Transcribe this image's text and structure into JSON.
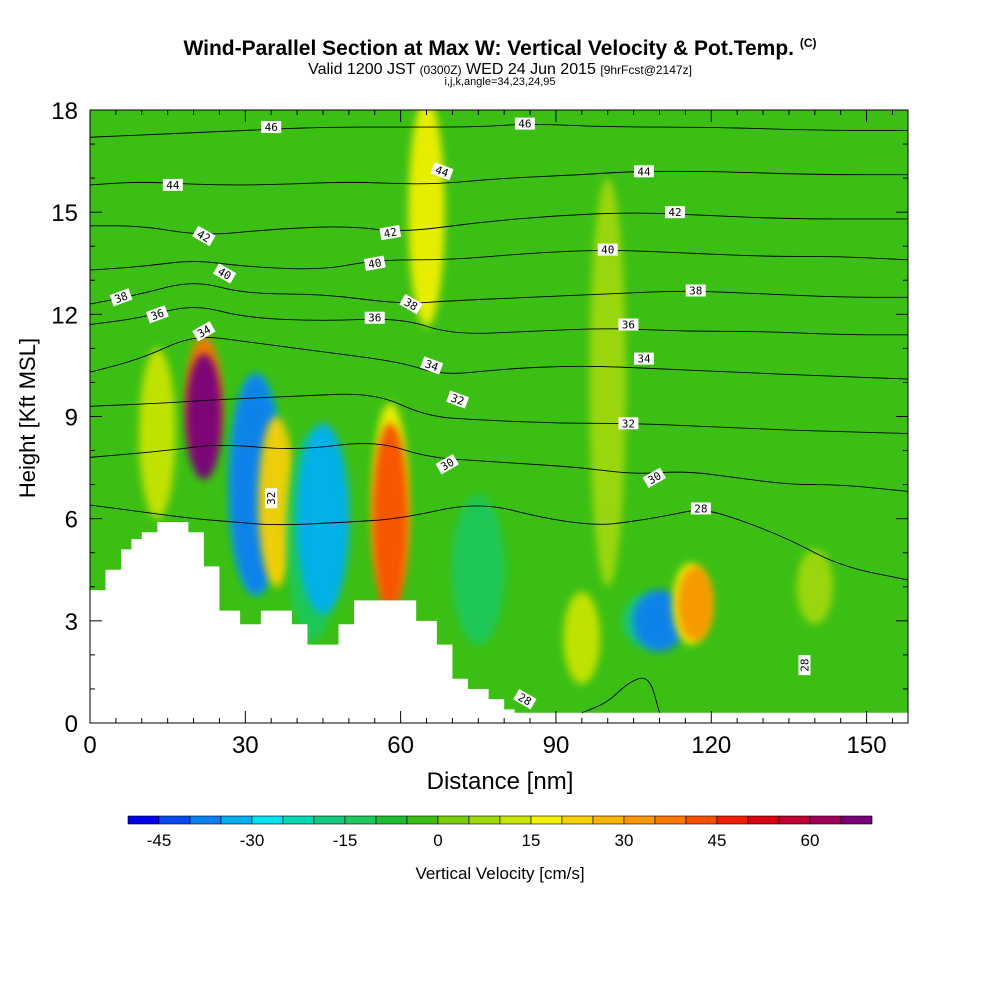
{
  "header": {
    "title": "Wind-Parallel Section at Max W: Vertical Velocity & Pot.Temp.",
    "copyright": "(C)",
    "valid_prefix": "Valid 1200 JST",
    "valid_utc": "(0300Z)",
    "valid_date": "WED 24 Jun 2015",
    "forecast": "[9hrFcst@2147z]",
    "indices": "i,j,k,angle=34,23,24,95"
  },
  "chart_data": {
    "type": "heatmap",
    "xlabel": "Distance [nm]",
    "ylabel": "Height [Kft MSL]",
    "xlim": [
      0,
      158
    ],
    "ylim": [
      0,
      18
    ],
    "x_ticks": [
      "0",
      "30",
      "60",
      "90",
      "120",
      "150"
    ],
    "y_ticks": [
      "0",
      "3",
      "6",
      "9",
      "12",
      "15",
      "18"
    ],
    "x_tick_values": [
      0,
      30,
      60,
      90,
      120,
      150
    ],
    "y_tick_values": [
      0,
      3,
      6,
      9,
      12,
      15,
      18
    ],
    "background_color": "#3cbf14",
    "terrain": [
      [
        0,
        3.9
      ],
      [
        3,
        3.9
      ],
      [
        3,
        4.5
      ],
      [
        6,
        4.5
      ],
      [
        6,
        5.1
      ],
      [
        8,
        5.1
      ],
      [
        8,
        5.4
      ],
      [
        10,
        5.4
      ],
      [
        10,
        5.6
      ],
      [
        13,
        5.6
      ],
      [
        13,
        5.9
      ],
      [
        19,
        5.9
      ],
      [
        19,
        5.6
      ],
      [
        22,
        5.6
      ],
      [
        22,
        4.6
      ],
      [
        25,
        4.6
      ],
      [
        25,
        3.3
      ],
      [
        29,
        3.3
      ],
      [
        29,
        2.9
      ],
      [
        33,
        2.9
      ],
      [
        33,
        3.3
      ],
      [
        39,
        3.3
      ],
      [
        39,
        2.9
      ],
      [
        42,
        2.9
      ],
      [
        42,
        2.3
      ],
      [
        48,
        2.3
      ],
      [
        48,
        2.9
      ],
      [
        51,
        2.9
      ],
      [
        51,
        3.6
      ],
      [
        63,
        3.6
      ],
      [
        63,
        3.0
      ],
      [
        67,
        3.0
      ],
      [
        67,
        2.3
      ],
      [
        70,
        2.3
      ],
      [
        70,
        1.3
      ],
      [
        73,
        1.3
      ],
      [
        73,
        1.0
      ],
      [
        77,
        1.0
      ],
      [
        77,
        0.7
      ],
      [
        80,
        0.7
      ],
      [
        80,
        0.4
      ],
      [
        82,
        0.4
      ],
      [
        82,
        0.3
      ],
      [
        158,
        0.3
      ]
    ],
    "blobs": [
      {
        "x": 22,
        "y": 9.5,
        "w": 37,
        "value": 35
      },
      {
        "x": 22,
        "y": 9.0,
        "w": 37,
        "value": 65
      },
      {
        "x": 13,
        "y": 8.5,
        "w": 50,
        "value": 12
      },
      {
        "x": 32,
        "y": 7.0,
        "w": 65,
        "value": -20
      },
      {
        "x": 32,
        "y": 7.0,
        "w": 65,
        "value": -40
      },
      {
        "x": 36,
        "y": 6.5,
        "w": 50,
        "value": 20
      },
      {
        "x": 43,
        "y": 5.5,
        "w": 62,
        "value": -15
      },
      {
        "x": 45,
        "y": 6.0,
        "w": 56,
        "value": -35
      },
      {
        "x": 58,
        "y": 6.5,
        "w": 58,
        "value": 15
      },
      {
        "x": 58,
        "y": 6.0,
        "w": 56,
        "value": 40
      },
      {
        "x": 65,
        "y": 15.0,
        "w": 67,
        "value": 15
      },
      {
        "x": 75,
        "y": 4.5,
        "w": 44,
        "value": -12
      },
      {
        "x": 95,
        "y": 2.5,
        "w": 27,
        "value": 12
      },
      {
        "x": 108,
        "y": 3.0,
        "w": 16,
        "value": -20
      },
      {
        "x": 110,
        "y": 3.0,
        "w": 18,
        "value": -40
      },
      {
        "x": 116,
        "y": 3.5,
        "w": 24,
        "value": 15
      },
      {
        "x": 117,
        "y": 3.5,
        "w": 22,
        "value": 30
      },
      {
        "x": 100,
        "y": 10.0,
        "w": 120,
        "value": 8
      },
      {
        "x": 140,
        "y": 4.0,
        "w": 22,
        "value": 8
      }
    ],
    "colorbar": {
      "label": "Vertical Velocity [cm/s]",
      "tick_labels": [
        "-45",
        "-30",
        "-15",
        "0",
        "15",
        "30",
        "45",
        "60"
      ],
      "tick_values": [
        -45,
        -30,
        -15,
        0,
        15,
        30,
        45,
        60
      ],
      "boundaries": [
        -50,
        70
      ],
      "step": 5,
      "colors": [
        "#0000f0",
        "#0a4af0",
        "#0a80f0",
        "#00b0f0",
        "#00e0ee",
        "#00d8b4",
        "#14c880",
        "#1ec85a",
        "#1ebe32",
        "#3cbf14",
        "#78cc0a",
        "#a0d80a",
        "#c8e400",
        "#f0f000",
        "#f8d200",
        "#f8b400",
        "#f89600",
        "#f87800",
        "#f85000",
        "#f01e00",
        "#dc0014",
        "#be0032",
        "#a0005a",
        "#78007d"
      ]
    },
    "contours": {
      "variable": "potential temperature",
      "lines": [
        {
          "label": "28",
          "points": [
            [
              95,
              0.3
            ],
            [
              100,
              0.6
            ],
            [
              104,
              1.2
            ],
            [
              108,
              1.4
            ],
            [
              110,
              0.3
            ]
          ]
        },
        {
          "label": "28",
          "points": [
            [
              0,
              6.4
            ],
            [
              10,
              6.2
            ],
            [
              20,
              6.0
            ],
            [
              28,
              5.9
            ],
            [
              36,
              5.8
            ],
            [
              50,
              5.9
            ],
            [
              60,
              6.0
            ],
            [
              75,
              6.5
            ],
            [
              88,
              6.0
            ],
            [
              98,
              5.8
            ],
            [
              104,
              5.9
            ],
            [
              112,
              6.1
            ],
            [
              118,
              6.3
            ],
            [
              125,
              6.0
            ],
            [
              135,
              5.4
            ],
            [
              145,
              4.6
            ],
            [
              158,
              4.2
            ]
          ]
        },
        {
          "label": "30",
          "points": [
            [
              0,
              7.8
            ],
            [
              15,
              8.0
            ],
            [
              25,
              8.2
            ],
            [
              40,
              8.0
            ],
            [
              55,
              8.3
            ],
            [
              65,
              7.8
            ],
            [
              75,
              7.7
            ],
            [
              85,
              7.6
            ],
            [
              95,
              7.5
            ],
            [
              105,
              7.3
            ],
            [
              115,
              7.4
            ],
            [
              125,
              7.2
            ],
            [
              135,
              7.0
            ],
            [
              145,
              7.0
            ],
            [
              158,
              6.8
            ]
          ]
        },
        {
          "label": "32",
          "points": [
            [
              0,
              9.3
            ],
            [
              15,
              9.4
            ],
            [
              25,
              9.5
            ],
            [
              40,
              9.6
            ],
            [
              55,
              9.7
            ],
            [
              65,
              9.0
            ],
            [
              75,
              8.9
            ],
            [
              90,
              8.8
            ],
            [
              105,
              8.8
            ],
            [
              120,
              8.7
            ],
            [
              135,
              8.6
            ],
            [
              158,
              8.5
            ]
          ]
        },
        {
          "label": "34",
          "points": [
            [
              0,
              10.3
            ],
            [
              10,
              10.7
            ],
            [
              20,
              11.4
            ],
            [
              30,
              11.2
            ],
            [
              45,
              10.9
            ],
            [
              60,
              10.6
            ],
            [
              68,
              10.2
            ],
            [
              80,
              10.4
            ],
            [
              95,
              10.5
            ],
            [
              110,
              10.4
            ],
            [
              125,
              10.3
            ],
            [
              140,
              10.2
            ],
            [
              158,
              10.1
            ]
          ]
        },
        {
          "label": "36",
          "points": [
            [
              0,
              11.7
            ],
            [
              10,
              11.9
            ],
            [
              20,
              12.3
            ],
            [
              30,
              11.9
            ],
            [
              45,
              11.8
            ],
            [
              60,
              11.9
            ],
            [
              70,
              11.4
            ],
            [
              85,
              11.5
            ],
            [
              100,
              11.6
            ],
            [
              115,
              11.5
            ],
            [
              130,
              11.5
            ],
            [
              145,
              11.4
            ],
            [
              158,
              11.4
            ]
          ]
        },
        {
          "label": "38",
          "points": [
            [
              0,
              12.3
            ],
            [
              10,
              12.6
            ],
            [
              20,
              13.0
            ],
            [
              30,
              12.6
            ],
            [
              45,
              12.6
            ],
            [
              60,
              12.3
            ],
            [
              70,
              12.4
            ],
            [
              85,
              12.5
            ],
            [
              100,
              12.6
            ],
            [
              115,
              12.7
            ],
            [
              130,
              12.6
            ],
            [
              145,
              12.5
            ],
            [
              158,
              12.5
            ]
          ]
        },
        {
          "label": "40",
          "points": [
            [
              0,
              13.3
            ],
            [
              10,
              13.4
            ],
            [
              20,
              13.6
            ],
            [
              30,
              13.4
            ],
            [
              45,
              13.3
            ],
            [
              55,
              13.6
            ],
            [
              70,
              13.6
            ],
            [
              85,
              13.8
            ],
            [
              100,
              13.9
            ],
            [
              115,
              13.8
            ],
            [
              130,
              13.7
            ],
            [
              145,
              13.7
            ],
            [
              158,
              13.6
            ]
          ]
        },
        {
          "label": "42",
          "points": [
            [
              0,
              14.6
            ],
            [
              10,
              14.6
            ],
            [
              22,
              14.3
            ],
            [
              35,
              14.5
            ],
            [
              50,
              14.6
            ],
            [
              60,
              14.4
            ],
            [
              75,
              14.7
            ],
            [
              90,
              14.9
            ],
            [
              105,
              15.0
            ],
            [
              120,
              14.9
            ],
            [
              135,
              14.8
            ],
            [
              158,
              14.8
            ]
          ]
        },
        {
          "label": "44",
          "points": [
            [
              0,
              15.8
            ],
            [
              10,
              15.9
            ],
            [
              22,
              15.8
            ],
            [
              35,
              15.8
            ],
            [
              50,
              15.9
            ],
            [
              65,
              15.8
            ],
            [
              80,
              16.0
            ],
            [
              95,
              16.1
            ],
            [
              105,
              16.2
            ],
            [
              120,
              16.2
            ],
            [
              140,
              16.1
            ],
            [
              158,
              16.1
            ]
          ]
        },
        {
          "label": "46",
          "points": [
            [
              0,
              17.2
            ],
            [
              15,
              17.3
            ],
            [
              30,
              17.4
            ],
            [
              45,
              17.5
            ],
            [
              60,
              17.5
            ],
            [
              75,
              17.5
            ],
            [
              85,
              17.6
            ],
            [
              100,
              17.5
            ],
            [
              120,
              17.5
            ],
            [
              140,
              17.4
            ],
            [
              158,
              17.4
            ]
          ]
        }
      ],
      "labels": [
        {
          "text": "46",
          "x": 35,
          "y": 17.5,
          "angle": 0
        },
        {
          "text": "46",
          "x": 84,
          "y": 17.6,
          "angle": 0
        },
        {
          "text": "44",
          "x": 16,
          "y": 15.8,
          "angle": 0
        },
        {
          "text": "44",
          "x": 68,
          "y": 16.2,
          "angle": 20
        },
        {
          "text": "44",
          "x": 107,
          "y": 16.2,
          "angle": 0
        },
        {
          "text": "42",
          "x": 113,
          "y": 15.0,
          "angle": 0
        },
        {
          "text": "42",
          "x": 22,
          "y": 14.3,
          "angle": 30
        },
        {
          "text": "42",
          "x": 58,
          "y": 14.4,
          "angle": -10
        },
        {
          "text": "40",
          "x": 26,
          "y": 13.2,
          "angle": 30
        },
        {
          "text": "40",
          "x": 55,
          "y": 13.5,
          "angle": -10
        },
        {
          "text": "40",
          "x": 100,
          "y": 13.9,
          "angle": 0
        },
        {
          "text": "38",
          "x": 6,
          "y": 12.5,
          "angle": -20
        },
        {
          "text": "38",
          "x": 62,
          "y": 12.3,
          "angle": 30
        },
        {
          "text": "38",
          "x": 117,
          "y": 12.7,
          "angle": 0
        },
        {
          "text": "36",
          "x": 13,
          "y": 12.0,
          "angle": -20
        },
        {
          "text": "36",
          "x": 55,
          "y": 11.9,
          "angle": 0
        },
        {
          "text": "36",
          "x": 104,
          "y": 11.7,
          "angle": 0
        },
        {
          "text": "34",
          "x": 22,
          "y": 11.5,
          "angle": -30
        },
        {
          "text": "34",
          "x": 66,
          "y": 10.5,
          "angle": 20
        },
        {
          "text": "34",
          "x": 107,
          "y": 10.7,
          "angle": 0
        },
        {
          "text": "32",
          "x": 71,
          "y": 9.5,
          "angle": 20
        },
        {
          "text": "32",
          "x": 104,
          "y": 8.8,
          "angle": 0
        },
        {
          "text": "32",
          "x": 35,
          "y": 6.6,
          "angle": -90
        },
        {
          "text": "30",
          "x": 69,
          "y": 7.6,
          "angle": -30
        },
        {
          "text": "30",
          "x": 109,
          "y": 7.2,
          "angle": -30
        },
        {
          "text": "28",
          "x": 118,
          "y": 6.3,
          "angle": 0
        },
        {
          "text": "28",
          "x": 84,
          "y": 0.7,
          "angle": 30
        },
        {
          "text": "28",
          "x": 138,
          "y": 1.7,
          "angle": -90
        }
      ]
    }
  }
}
